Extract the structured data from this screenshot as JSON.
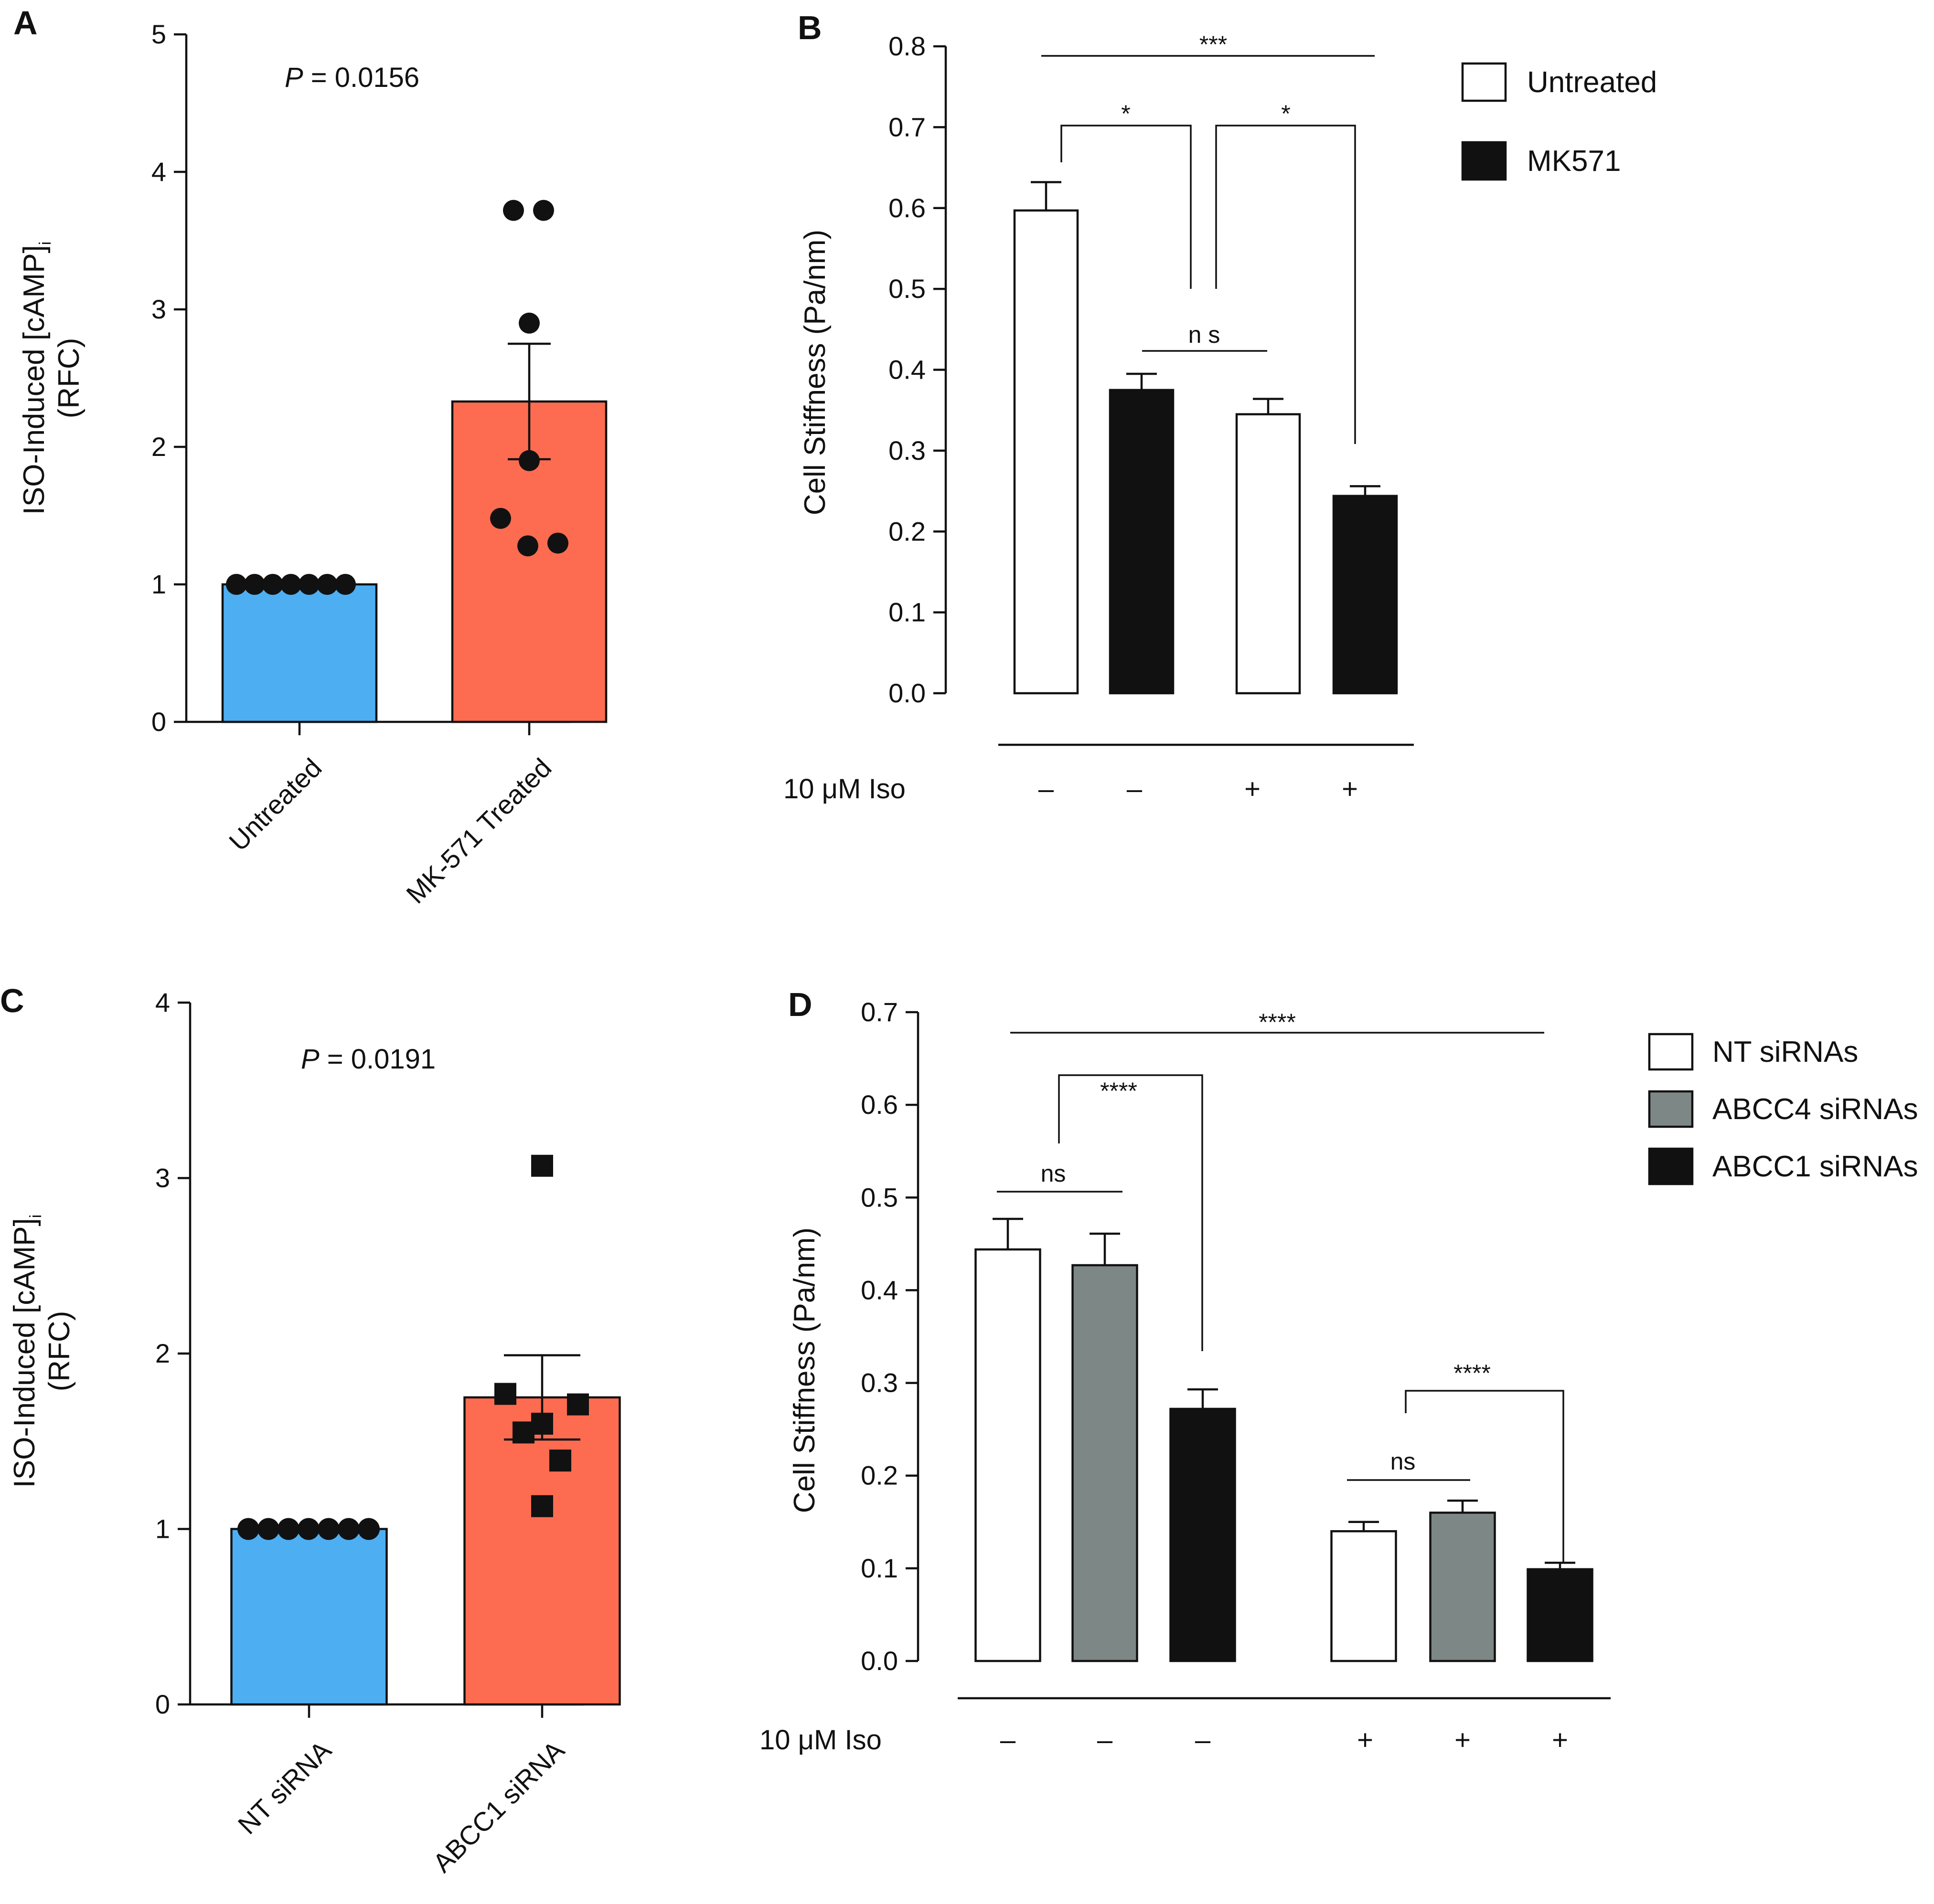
{
  "panels": {
    "A": {
      "letter": "A",
      "ylabel_main": "ISO-Induced [cAMP]",
      "ylabel_sub": "i",
      "ylabel_line2": "(RFC)",
      "pvalue_italic": "P",
      "pvalue_rest": " = 0.0156",
      "colors": {
        "bar1": "#4eaef2",
        "bar2": "#fd6c50"
      }
    },
    "B": {
      "letter": "B",
      "ylabel": "Cell Stiffness (Pa/nm)",
      "iso_label": "10 μM Iso",
      "iso_marks": [
        "–",
        "–",
        "+",
        "+"
      ],
      "sig": [
        "***",
        "*",
        "*",
        "n s"
      ],
      "legend": [
        {
          "label": "Untreated",
          "color": "#ffffff"
        },
        {
          "label": "MK571",
          "color": "#111111"
        }
      ]
    },
    "C": {
      "letter": "C",
      "ylabel_main": "ISO-Induced [cAMP]",
      "ylabel_sub": "i",
      "ylabel_line2": "(RFC)",
      "pvalue_italic": "P",
      "pvalue_rest": " = 0.0191",
      "colors": {
        "bar1": "#4eaef2",
        "bar2": "#fd6c50"
      }
    },
    "D": {
      "letter": "D",
      "ylabel": "Cell Stiffness (Pa/nm)",
      "iso_label": "10 μM Iso",
      "iso_marks": [
        "–",
        "–",
        "–",
        "+",
        "+",
        "+"
      ],
      "sig": [
        "****",
        "****",
        "ns",
        "****",
        "ns"
      ],
      "legend": [
        {
          "label": "NT siRNAs",
          "color": "#ffffff"
        },
        {
          "label": "ABCC4 siRNAs",
          "color": "#7d8886"
        },
        {
          "label": "ABCC1 siRNAs",
          "color": "#111111"
        }
      ]
    }
  },
  "chart_data": [
    {
      "panel": "A",
      "type": "bar",
      "categories": [
        "Untreated",
        "MK-571 Treated"
      ],
      "values": [
        1.0,
        2.33
      ],
      "error": [
        0.0,
        0.42
      ],
      "ylim": [
        0,
        5
      ],
      "yticks": [
        0,
        1,
        2,
        3,
        4,
        5
      ],
      "ylabel": "ISO-Induced [cAMP]i (RFC)",
      "points": [
        [
          1,
          1,
          1,
          1,
          1,
          1,
          1
        ],
        [
          3.72,
          3.72,
          2.9,
          1.9,
          1.48,
          1.28,
          1.3
        ]
      ],
      "marker": "circle"
    },
    {
      "panel": "B",
      "type": "bar",
      "categories": [
        "Untreated −Iso",
        "MK571 −Iso",
        "Untreated +Iso",
        "MK571 +Iso"
      ],
      "values": [
        0.597,
        0.375,
        0.345,
        0.244
      ],
      "error": [
        0.035,
        0.02,
        0.019,
        0.012
      ],
      "ylim": [
        0,
        0.8
      ],
      "yticks": [
        "0.0",
        "0.1",
        "0.2",
        "0.3",
        "0.4",
        "0.5",
        "0.6",
        "0.7",
        "0.8"
      ],
      "ylabel": "Cell Stiffness (Pa/nm)"
    },
    {
      "panel": "C",
      "type": "bar",
      "categories": [
        "NT siRNA",
        "ABCC1 siRNA"
      ],
      "values": [
        1.0,
        1.75
      ],
      "error": [
        0.0,
        0.24
      ],
      "ylim": [
        0,
        4
      ],
      "yticks": [
        0,
        1,
        2,
        3,
        4
      ],
      "ylabel": "ISO-Induced [cAMP]i (RFC)",
      "points": [
        [
          1,
          1,
          1,
          1,
          1,
          1,
          1
        ],
        [
          3.07,
          1.77,
          1.6,
          1.55,
          1.71,
          1.39,
          1.13
        ]
      ],
      "marker": "square"
    },
    {
      "panel": "D",
      "type": "bar",
      "categories": [
        "NT −Iso",
        "ABCC4 −Iso",
        "ABCC1 −Iso",
        "NT +Iso",
        "ABCC4 +Iso",
        "ABCC1 +Iso"
      ],
      "values": [
        0.444,
        0.427,
        0.272,
        0.14,
        0.16,
        0.099
      ],
      "error": [
        0.033,
        0.034,
        0.021,
        0.01,
        0.013,
        0.007
      ],
      "ylim": [
        0,
        0.7
      ],
      "yticks": [
        "0.0",
        "0.1",
        "0.2",
        "0.3",
        "0.4",
        "0.5",
        "0.6",
        "0.7"
      ],
      "ylabel": "Cell Stiffness (Pa/nm)"
    }
  ]
}
